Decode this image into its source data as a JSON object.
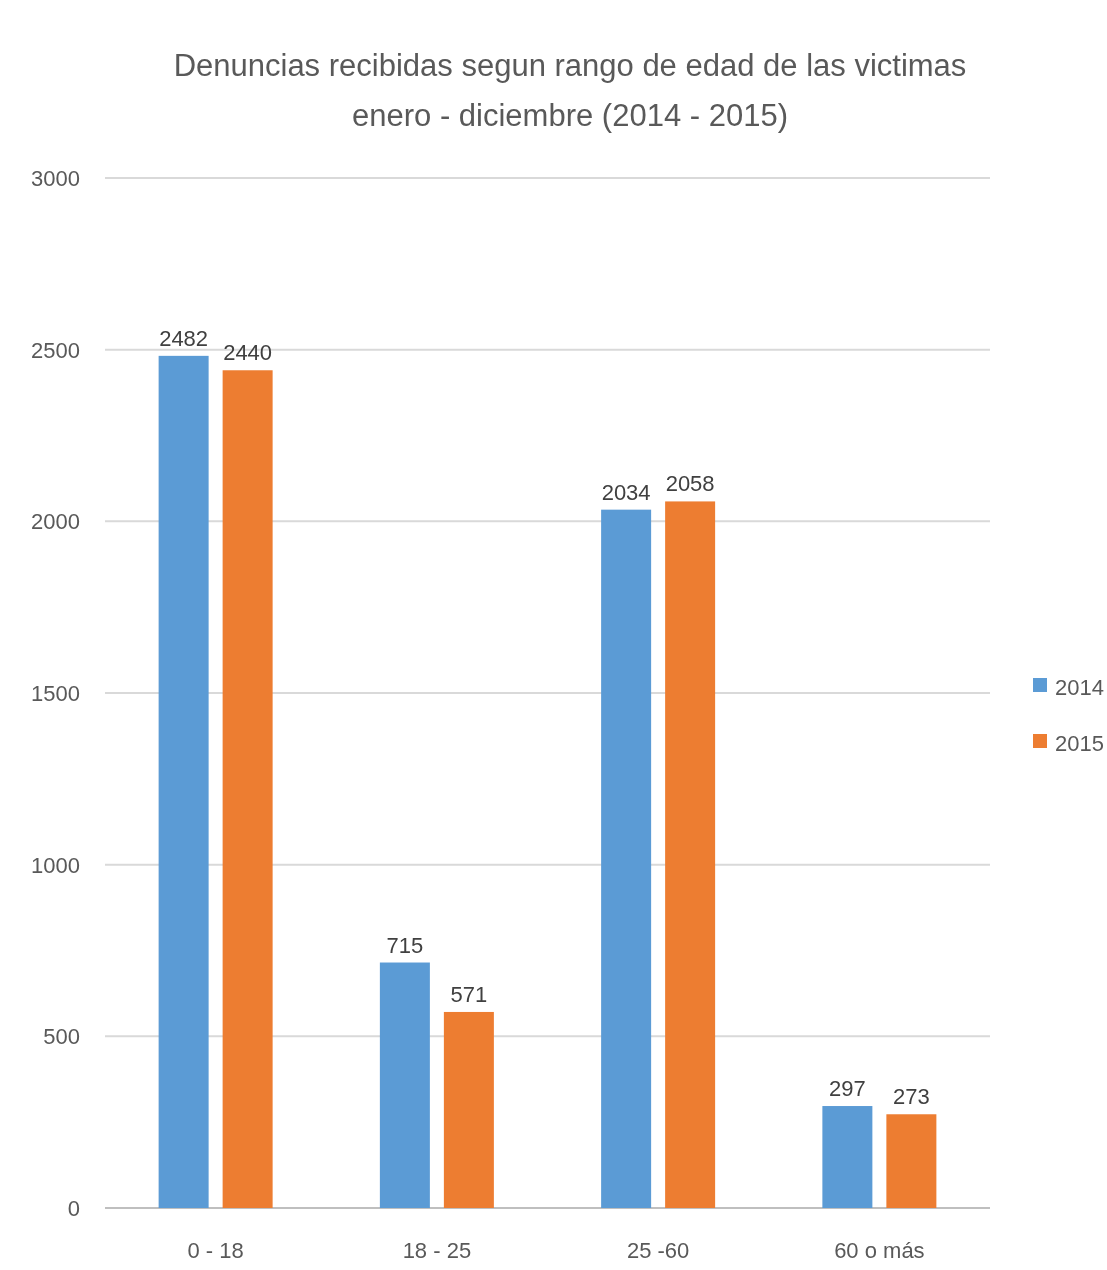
{
  "chart_data": {
    "type": "bar",
    "title": "Denuncias recibidas segun rango de edad de las victimas\nenero - diciembre (2014 - 2015)",
    "categories": [
      "0 - 18",
      "18 - 25",
      "25 -60",
      "60 o más"
    ],
    "series": [
      {
        "name": "2014",
        "color": "#5b9bd5",
        "values": [
          2482,
          715,
          2034,
          297
        ]
      },
      {
        "name": "2015",
        "color": "#ed7d31",
        "values": [
          2440,
          571,
          2058,
          273
        ]
      }
    ],
    "ylim": [
      0,
      3000
    ],
    "yticks": [
      0,
      500,
      1000,
      1500,
      2000,
      2500,
      3000
    ],
    "grid": "y",
    "legend": "right",
    "data_labels": true
  }
}
